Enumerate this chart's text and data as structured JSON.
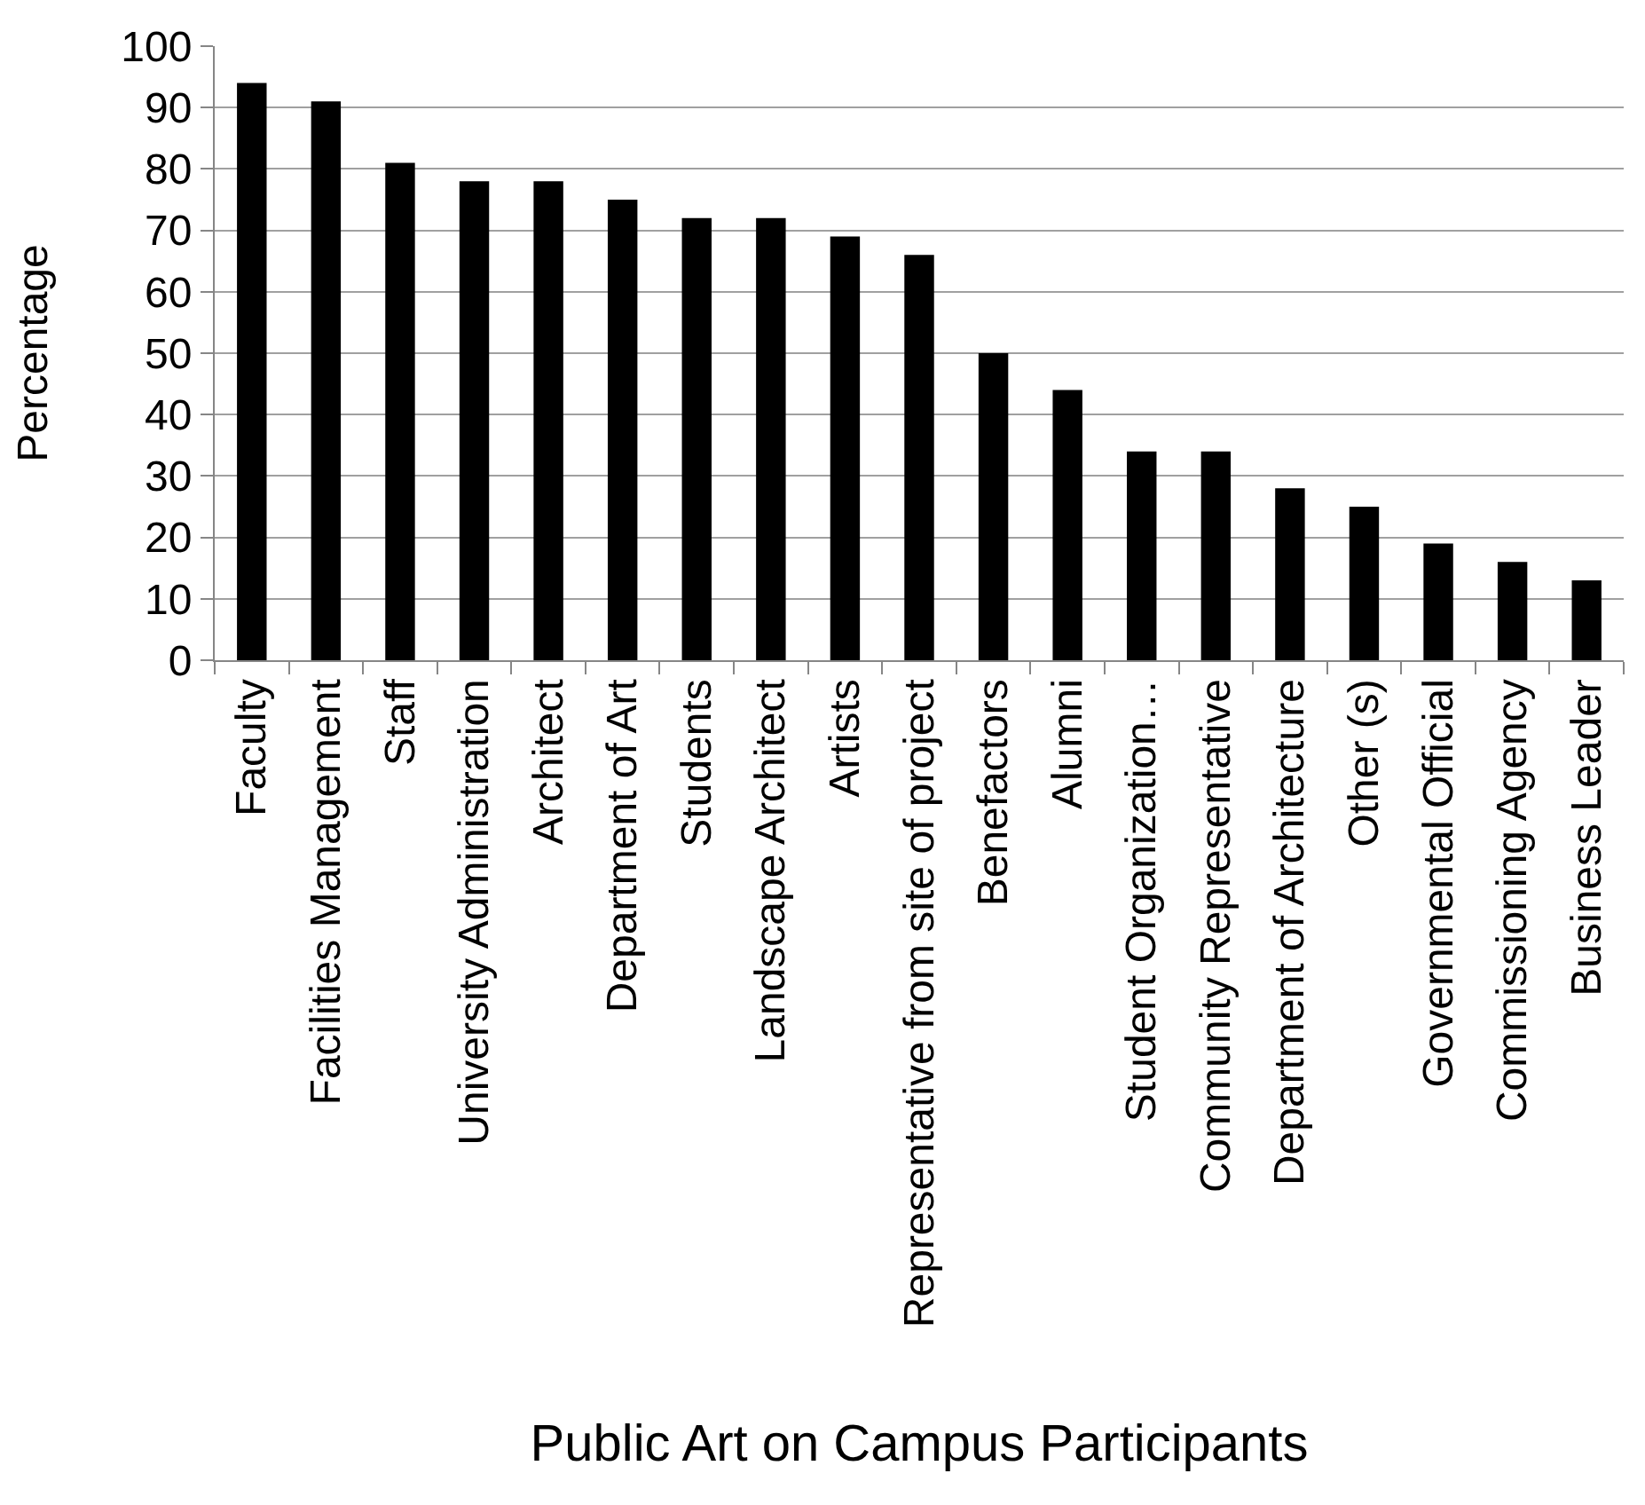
{
  "chart_data": {
    "type": "bar",
    "xlabel": "Public Art on Campus Participants",
    "ylabel": "Percentage",
    "categories": [
      "Faculty",
      "Facilities Management",
      "Staff",
      "University Administration",
      "Architect",
      "Department of Art",
      "Students",
      "Landscape Architect",
      "Artists",
      "Representative from site of project",
      "Benefactors",
      "Alumni",
      "Student Organization…",
      "Community Representative",
      "Department of Architecture",
      "Other (s)",
      "Governmental Official",
      "Commissioning Agency",
      "Business Leader"
    ],
    "values": [
      94,
      91,
      81,
      78,
      78,
      75,
      72,
      72,
      69,
      66,
      50,
      44,
      34,
      34,
      28,
      25,
      19,
      16,
      13
    ],
    "color": "#000000",
    "ylim": [
      0,
      100
    ],
    "yticks": [
      0,
      10,
      20,
      30,
      40,
      50,
      60,
      70,
      80,
      90,
      100
    ],
    "grid": "y"
  }
}
